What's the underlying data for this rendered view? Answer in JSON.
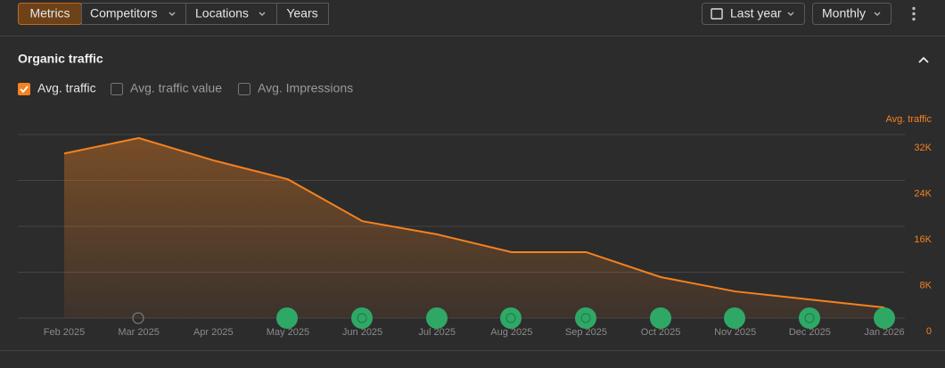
{
  "toolbar": {
    "tabs": [
      "Metrics",
      "Competitors",
      "Locations",
      "Years"
    ],
    "period": "Last year",
    "interval": "Monthly"
  },
  "panel": {
    "title": "Organic traffic",
    "options": [
      "Avg. traffic value",
      "Avg. Impressions"
    ]
  },
  "chart_data": {
    "type": "area",
    "y_label": "Avg. traffic",
    "categories": [
      "Feb 2025",
      "Mar 2025",
      "Apr 2025",
      "May 2025",
      "Jun 2025",
      "Jul 2025",
      "Aug 2025",
      "Sep 2025",
      "Oct 2025",
      "Nov 2025",
      "Dec 2025",
      "Jan 2026"
    ],
    "series": [
      {
        "name": "Avg. traffic",
        "color": "#f5821f",
        "values": [
          28700,
          31400,
          27500,
          24200,
          16900,
          14600,
          11500,
          11500,
          7150,
          4650,
          3250,
          1850
        ]
      }
    ],
    "ylim": [
      0,
      32000
    ],
    "yticks": [
      0,
      {
        "value": 8000,
        "label": "8K"
      },
      {
        "value": 16000,
        "label": "16K"
      },
      {
        "value": 24000,
        "label": "24K"
      },
      {
        "value": 32000,
        "label": "32K"
      }
    ],
    "grid": true
  }
}
